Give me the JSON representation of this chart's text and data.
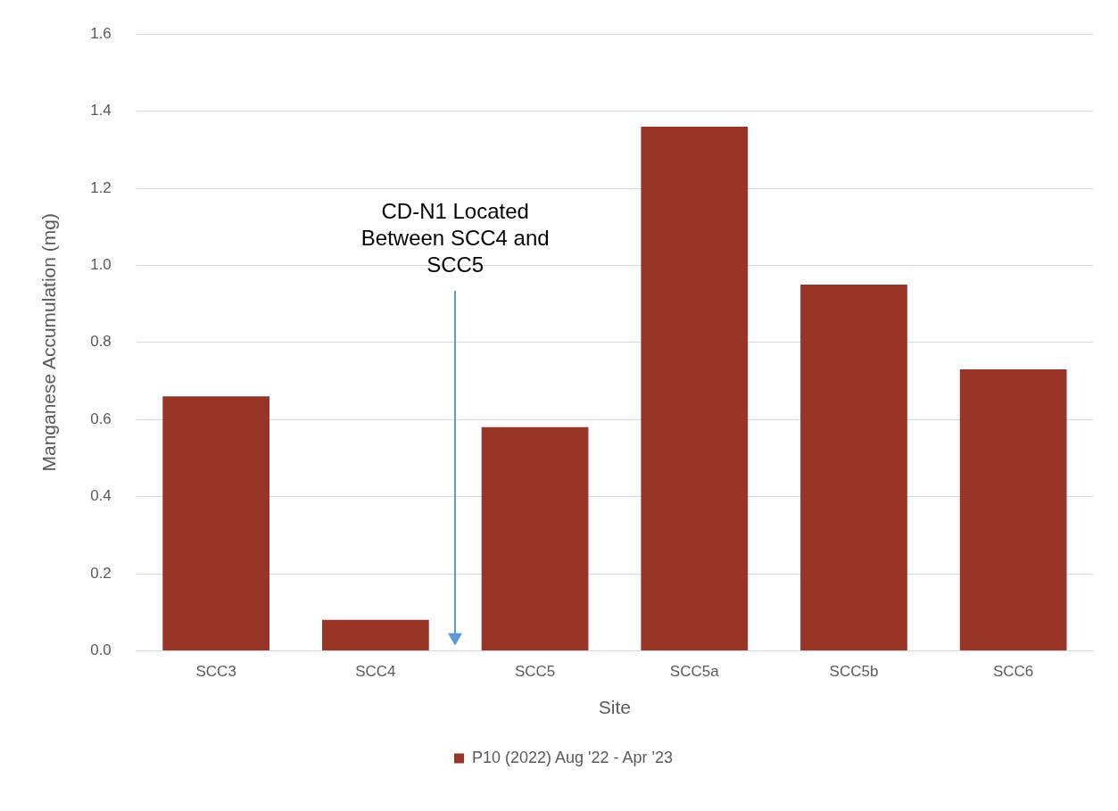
{
  "chart_data": {
    "type": "bar",
    "xlabel": "Site",
    "ylabel": "Manganese Accumulation (mg)",
    "categories": [
      "SCC3",
      "SCC4",
      "SCC5",
      "SCC5a",
      "SCC5b",
      "SCC6"
    ],
    "series": [
      {
        "name": "P10 (2022) Aug '22 - Apr '23",
        "color": "#993527",
        "values": [
          0.66,
          0.08,
          0.58,
          1.36,
          0.95,
          0.73
        ]
      }
    ],
    "ylim": [
      0,
      1.6
    ],
    "yticks": [
      {
        "value": 0,
        "label": "0.0"
      },
      {
        "value": 0.2,
        "label": "0.2"
      },
      {
        "value": 0.4,
        "label": "0.4"
      },
      {
        "value": 0.6,
        "label": "0.6"
      },
      {
        "value": 0.8,
        "label": "0.8"
      },
      {
        "value": 1.0,
        "label": "1.0"
      },
      {
        "value": 1.2,
        "label": "1.2"
      },
      {
        "value": 1.4,
        "label": "1.4"
      },
      {
        "value": 1.6,
        "label": "1.6"
      }
    ],
    "grid": "y",
    "legend": "bottom",
    "annotations": [
      "CD-N1 Located\nBetween SCC4 and\nSCC5"
    ]
  }
}
